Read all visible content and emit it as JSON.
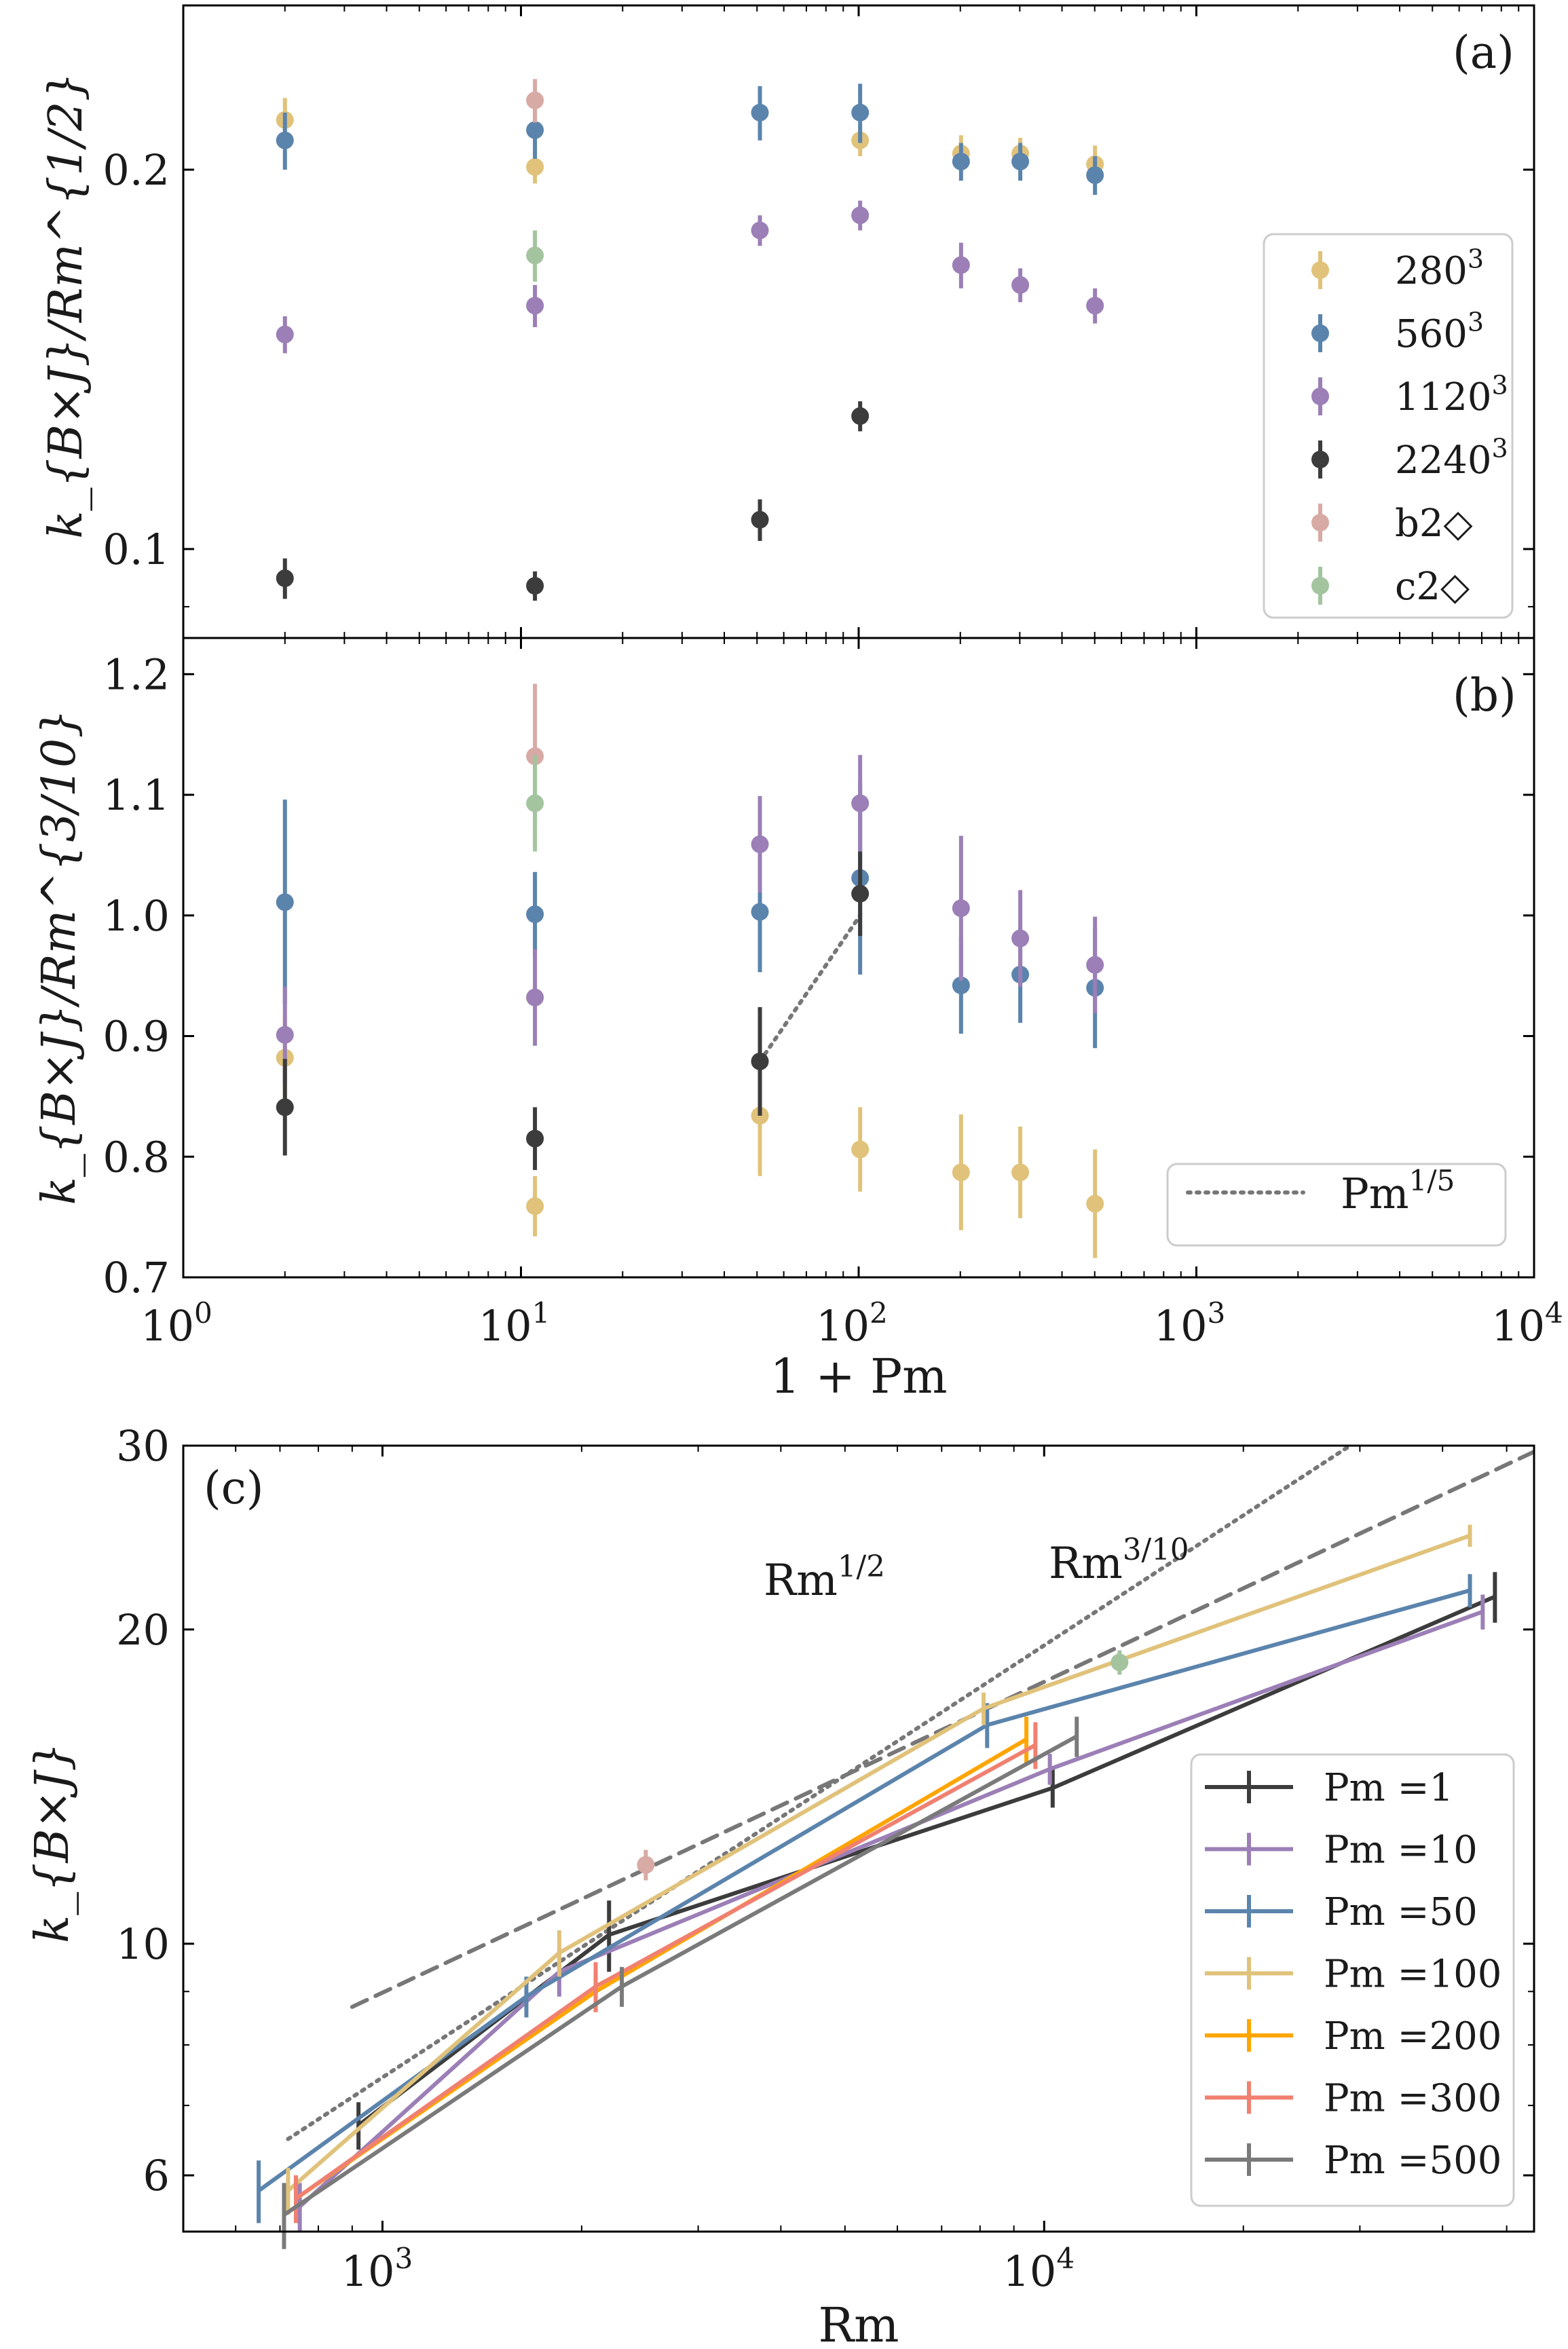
{
  "chart_data": [
    {
      "id": "a",
      "type": "scatter",
      "panel_label": "(a)",
      "ylabel": "k_{B×J}/Rm^{1/2}",
      "xlabel": "",
      "xscale": "log",
      "yscale": "log",
      "xlim": [
        1,
        10000
      ],
      "ylim": [
        0.085,
        0.27
      ],
      "yticks": [
        {
          "value": 0.1,
          "label": "0.1"
        },
        {
          "value": 0.2,
          "label": "0.2"
        }
      ],
      "legend_position": "right",
      "series": [
        {
          "name": "280",
          "sup": "3",
          "color": "#e0c27a",
          "points": [
            [
              2,
              0.219,
              0.009
            ],
            [
              11,
              0.201,
              0.006
            ],
            [
              101,
              0.211,
              0.006
            ],
            [
              201,
              0.206,
              0.007
            ],
            [
              301,
              0.206,
              0.006
            ],
            [
              501,
              0.202,
              0.007
            ]
          ]
        },
        {
          "name": "560",
          "sup": "3",
          "color": "#5b84ad",
          "points": [
            [
              2,
              0.211,
              0.011
            ],
            [
              11,
              0.215,
              0.011
            ],
            [
              51,
              0.222,
              0.011
            ],
            [
              101,
              0.222,
              0.012
            ],
            [
              201,
              0.203,
              0.007
            ],
            [
              301,
              0.203,
              0.007
            ],
            [
              501,
              0.198,
              0.007
            ]
          ]
        },
        {
          "name": "1120",
          "sup": "3",
          "color": "#9b7fb6",
          "points": [
            [
              2,
              0.148,
              0.005
            ],
            [
              11,
              0.156,
              0.006
            ],
            [
              51,
              0.179,
              0.005
            ],
            [
              101,
              0.184,
              0.005
            ],
            [
              201,
              0.168,
              0.007
            ],
            [
              301,
              0.162,
              0.005
            ],
            [
              501,
              0.156,
              0.005
            ]
          ]
        },
        {
          "name": "2240",
          "sup": "3",
          "color": "#3c3c3c",
          "points": [
            [
              2,
              0.0948,
              0.0035
            ],
            [
              11,
              0.0935,
              0.0025
            ],
            [
              51,
              0.1055,
              0.004
            ],
            [
              101,
              0.1275,
              0.0035
            ]
          ]
        },
        {
          "name": "b2◇",
          "sup": "",
          "color": "#d8aaa5",
          "points": [
            [
              11,
              0.227,
              0.009
            ]
          ]
        },
        {
          "name": "c2◇",
          "sup": "",
          "color": "#a3c49f",
          "points": [
            [
              11,
              0.171,
              0.008
            ]
          ]
        }
      ]
    },
    {
      "id": "b",
      "type": "scatter",
      "panel_label": "(b)",
      "ylabel": "k_{B×J}/Rm^{3/10}",
      "xlabel": "1 + Pm",
      "xscale": "log",
      "yscale": "linear",
      "xlim": [
        1,
        10000
      ],
      "ylim": [
        0.7,
        1.23
      ],
      "yticks": [
        {
          "value": 0.7,
          "label": "0.7"
        },
        {
          "value": 0.8,
          "label": "0.8"
        },
        {
          "value": 0.9,
          "label": "0.9"
        },
        {
          "value": 1.0,
          "label": "1.0"
        },
        {
          "value": 1.1,
          "label": "1.1"
        },
        {
          "value": 1.2,
          "label": "1.2"
        }
      ],
      "xticks": [
        {
          "value": 1,
          "base": "10",
          "exp": "0"
        },
        {
          "value": 10,
          "base": "10",
          "exp": "1"
        },
        {
          "value": 100,
          "base": "10",
          "exp": "2"
        },
        {
          "value": 1000,
          "base": "10",
          "exp": "3"
        },
        {
          "value": 10000,
          "base": "10",
          "exp": "4"
        }
      ],
      "series": [
        {
          "name": "280",
          "color": "#e0c27a",
          "points": [
            [
              2,
              0.882,
              0.035
            ],
            [
              11,
              0.759,
              0.025
            ],
            [
              51,
              0.834,
              0.05
            ],
            [
              101,
              0.806,
              0.035
            ],
            [
              201,
              0.787,
              0.048
            ],
            [
              301,
              0.787,
              0.038
            ],
            [
              501,
              0.761,
              0.045
            ]
          ]
        },
        {
          "name": "560",
          "color": "#5b84ad",
          "points": [
            [
              2,
              1.011,
              0.085
            ],
            [
              11,
              1.001,
              0.035
            ],
            [
              51,
              1.003,
              0.05
            ],
            [
              101,
              1.031,
              0.08
            ],
            [
              201,
              0.942,
              0.04
            ],
            [
              301,
              0.951,
              0.04
            ],
            [
              501,
              0.94,
              0.05
            ]
          ]
        },
        {
          "name": "1120",
          "color": "#9b7fb6",
          "points": [
            [
              2,
              0.901,
              0.04
            ],
            [
              11,
              0.932,
              0.04
            ],
            [
              51,
              1.059,
              0.04
            ],
            [
              101,
              1.093,
              0.04
            ],
            [
              201,
              1.006,
              0.06
            ],
            [
              301,
              0.981,
              0.04
            ],
            [
              501,
              0.959,
              0.04
            ]
          ]
        },
        {
          "name": "2240",
          "color": "#3c3c3c",
          "points": [
            [
              2,
              0.841,
              0.04
            ],
            [
              11,
              0.815,
              0.026
            ],
            [
              51,
              0.879,
              0.045
            ],
            [
              101,
              1.018,
              0.035
            ]
          ]
        },
        {
          "name": "b2◇",
          "color": "#d8aaa5",
          "points": [
            [
              11,
              1.132,
              0.06
            ]
          ]
        },
        {
          "name": "c2◇",
          "color": "#a3c49f",
          "points": [
            [
              11,
              1.093,
              0.04
            ]
          ]
        }
      ],
      "reference_line": {
        "label": "Pm",
        "sup": "1/5",
        "style": "dotted",
        "color": "#777777",
        "x": [
          51,
          101
        ],
        "y": [
          0.879,
          1.0
        ]
      },
      "legend_position": "bottom-right"
    },
    {
      "id": "c",
      "type": "line",
      "panel_label": "(c)",
      "ylabel": "k_{B×J}",
      "xlabel": "Rm",
      "xscale": "log",
      "yscale": "log",
      "xlim": [
        500,
        55000
      ],
      "ylim": [
        5.3,
        30
      ],
      "yticks": [
        {
          "value": 6,
          "label": "6"
        },
        {
          "value": 10,
          "label": "10"
        },
        {
          "value": 20,
          "label": "20"
        },
        {
          "value": 30,
          "label": "30"
        }
      ],
      "xticks": [
        {
          "value": 1000,
          "base": "10",
          "exp": "3"
        },
        {
          "value": 10000,
          "base": "10",
          "exp": "4"
        }
      ],
      "legend_position": "lower-right",
      "series": [
        {
          "name": "Pm =1",
          "color": "#3c3c3c",
          "points": [
            [
              920,
              6.7,
              0.35
            ],
            [
              2200,
              10.2,
              0.8
            ],
            [
              10300,
              14.1,
              0.6
            ],
            [
              48000,
              21.5,
              1.2
            ]
          ]
        },
        {
          "name": "Pm =10",
          "color": "#9b7fb6",
          "points": [
            [
              750,
              5.6,
              0.3
            ],
            [
              1850,
              9.4,
              0.5
            ],
            [
              10200,
              14.7,
              0.5
            ],
            [
              46000,
              20.8,
              0.8
            ]
          ]
        },
        {
          "name": "Pm =50",
          "color": "#5b84ad",
          "points": [
            [
              650,
              5.8,
              0.4
            ],
            [
              1650,
              8.9,
              0.4
            ],
            [
              8200,
              16.2,
              0.8
            ],
            [
              44000,
              21.8,
              0.8
            ]
          ]
        },
        {
          "name": "Pm =100",
          "color": "#e0c27a",
          "points": [
            [
              720,
              5.8,
              0.3
            ],
            [
              1850,
              9.8,
              0.5
            ],
            [
              8100,
              16.8,
              0.6
            ],
            [
              44000,
              24.6,
              0.6
            ]
          ]
        },
        {
          "name": "Pm =200",
          "color": "#ffa500",
          "points": [
            [
              740,
              5.7,
              0.3
            ],
            [
              2100,
              9.0,
              0.4
            ],
            [
              9400,
              15.7,
              0.8
            ]
          ]
        },
        {
          "name": "Pm =300",
          "color": "#f08070",
          "points": [
            [
              740,
              5.7,
              0.3
            ],
            [
              2100,
              9.1,
              0.5
            ],
            [
              9700,
              15.5,
              0.8
            ]
          ]
        },
        {
          "name": "Pm =500",
          "color": "#7a7a7a",
          "points": [
            [
              710,
              5.5,
              0.4
            ],
            [
              2300,
              9.1,
              0.4
            ],
            [
              11200,
              15.8,
              0.7
            ]
          ]
        }
      ],
      "extra_points": [
        {
          "name": "b2◇",
          "color": "#d8aaa5",
          "x": 2500,
          "y": 11.9,
          "err": 0.4
        },
        {
          "name": "c2◇",
          "color": "#a3c49f",
          "x": 13000,
          "y": 18.6,
          "err": 0.5
        }
      ],
      "reference_lines": [
        {
          "label": "Rm",
          "sup": "1/2",
          "style": "dotted",
          "color": "#777777",
          "x": [
            720,
            29000
          ],
          "y": [
            6.5,
            30.0
          ]
        },
        {
          "label": "Rm",
          "sup": "3/10",
          "style": "dashed",
          "color": "#777777",
          "x": [
            900,
            55000
          ],
          "y": [
            8.7,
            29.6
          ]
        }
      ]
    }
  ]
}
